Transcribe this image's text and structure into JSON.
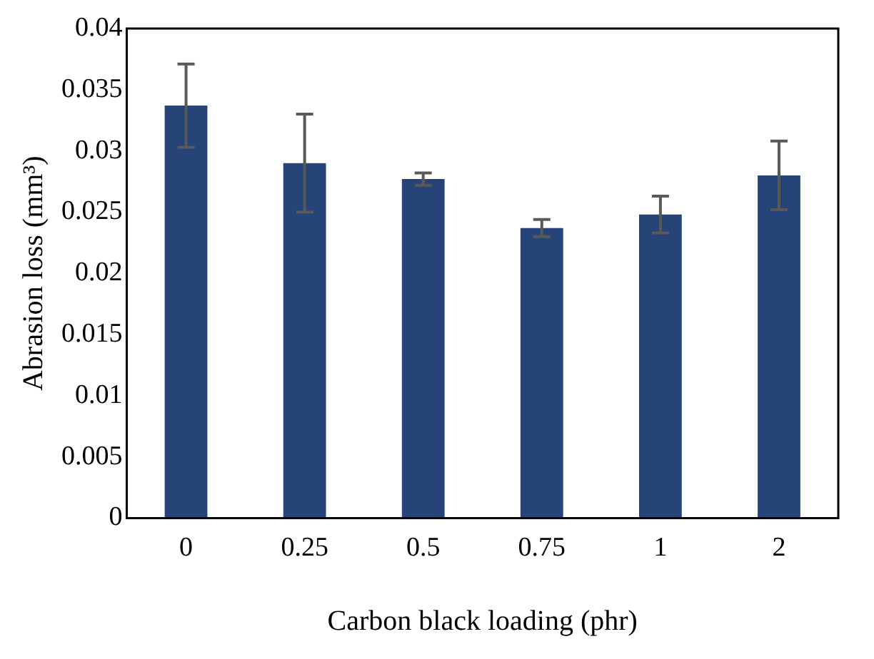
{
  "chart_data": {
    "type": "bar",
    "xlabel": "Carbon black loading (phr)",
    "ylabel": "Abrasion loss (mm³)",
    "categories": [
      "0",
      "0.25",
      "0.5",
      "0.75",
      "1",
      "2"
    ],
    "values": [
      0.0337,
      0.029,
      0.0277,
      0.0237,
      0.0248,
      0.028
    ],
    "errors": [
      0.0034,
      0.004,
      0.0005,
      0.0007,
      0.0015,
      0.0028
    ],
    "color": "#264478",
    "ylim": [
      0,
      0.04
    ],
    "yticks": [
      0,
      0.005,
      0.01,
      0.015,
      0.02,
      0.025,
      0.03,
      0.035,
      0.04
    ],
    "grid": false,
    "legend": false
  }
}
